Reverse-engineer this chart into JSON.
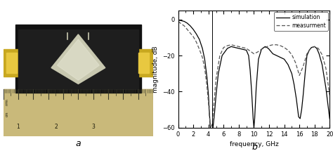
{
  "title_a": "a",
  "title_b": "b",
  "xlabel": "frequency, GHz",
  "ylabel": "magnitude, dB",
  "xlim": [
    0,
    20
  ],
  "ylim": [
    -60,
    5
  ],
  "yticks": [
    0,
    -20,
    -40,
    -60
  ],
  "xticks": [
    0,
    2,
    4,
    6,
    8,
    10,
    12,
    14,
    16,
    18,
    20
  ],
  "legend_sim": "simulation",
  "legend_meas": "measurment",
  "line_color_sim": "#000000",
  "line_color_meas": "#555555",
  "vline_x": 4.5,
  "sim_f": [
    0,
    0.3,
    0.8,
    1.2,
    1.6,
    2.0,
    2.4,
    2.8,
    3.2,
    3.5,
    3.8,
    4.0,
    4.1,
    4.2,
    4.3,
    4.4,
    4.5,
    4.6,
    4.8,
    5.0,
    5.3,
    5.8,
    6.5,
    7.0,
    7.5,
    8.0,
    8.5,
    9.0,
    9.3,
    9.5,
    9.7,
    9.9,
    10.0,
    10.1,
    10.3,
    10.6,
    11.0,
    11.3,
    11.5,
    11.7,
    11.9,
    12.1,
    12.3,
    12.5,
    13.0,
    13.5,
    14.0,
    14.5,
    15.0,
    15.3,
    15.6,
    15.9,
    16.1,
    16.3,
    16.5,
    16.8,
    17.0,
    17.3,
    17.6,
    18.0,
    18.3,
    18.6,
    19.0,
    19.5,
    20.0
  ],
  "sim_db": [
    -0.3,
    -0.5,
    -1.0,
    -2.0,
    -3.5,
    -5.5,
    -8.0,
    -11.0,
    -16.0,
    -22.0,
    -32.0,
    -42.0,
    -50.0,
    -57.0,
    -62.0,
    -62.0,
    -62.0,
    -60.0,
    -52.0,
    -42.0,
    -30.0,
    -20.0,
    -16.0,
    -15.0,
    -15.5,
    -16.0,
    -16.5,
    -17.0,
    -20.0,
    -28.0,
    -40.0,
    -55.0,
    -60.0,
    -55.0,
    -38.0,
    -22.0,
    -16.5,
    -15.5,
    -15.0,
    -15.5,
    -16.0,
    -17.0,
    -18.0,
    -19.0,
    -20.0,
    -21.0,
    -22.0,
    -25.0,
    -30.0,
    -36.0,
    -44.0,
    -54.0,
    -55.0,
    -50.0,
    -42.0,
    -28.0,
    -20.0,
    -17.0,
    -15.5,
    -15.0,
    -16.0,
    -19.0,
    -25.0,
    -38.0,
    -55.0
  ],
  "meas_f": [
    0,
    0.3,
    0.8,
    1.2,
    1.6,
    2.0,
    2.4,
    2.8,
    3.2,
    3.5,
    3.8,
    4.0,
    4.1,
    4.2,
    4.3,
    4.5,
    4.7,
    5.0,
    5.5,
    6.0,
    6.5,
    7.0,
    7.5,
    8.0,
    8.5,
    9.0,
    9.5,
    10.0,
    10.5,
    11.0,
    11.5,
    12.0,
    12.5,
    13.0,
    13.5,
    14.0,
    14.5,
    15.0,
    15.5,
    16.0,
    16.5,
    17.0,
    17.5,
    18.0,
    18.5,
    19.0,
    19.5,
    20.0
  ],
  "meas_db": [
    -1.0,
    -2.0,
    -3.5,
    -5.5,
    -7.5,
    -9.5,
    -12.5,
    -16.5,
    -21.0,
    -27.0,
    -37.0,
    -46.0,
    -52.0,
    -57.0,
    -60.0,
    -58.0,
    -48.0,
    -33.0,
    -20.0,
    -15.5,
    -14.5,
    -14.0,
    -14.5,
    -15.0,
    -15.5,
    -16.0,
    -17.5,
    -19.0,
    -18.0,
    -16.5,
    -15.5,
    -14.5,
    -14.0,
    -14.0,
    -14.5,
    -15.5,
    -17.0,
    -19.5,
    -24.0,
    -31.0,
    -26.0,
    -19.0,
    -16.0,
    -15.0,
    -16.0,
    -19.5,
    -27.0,
    -42.0
  ]
}
